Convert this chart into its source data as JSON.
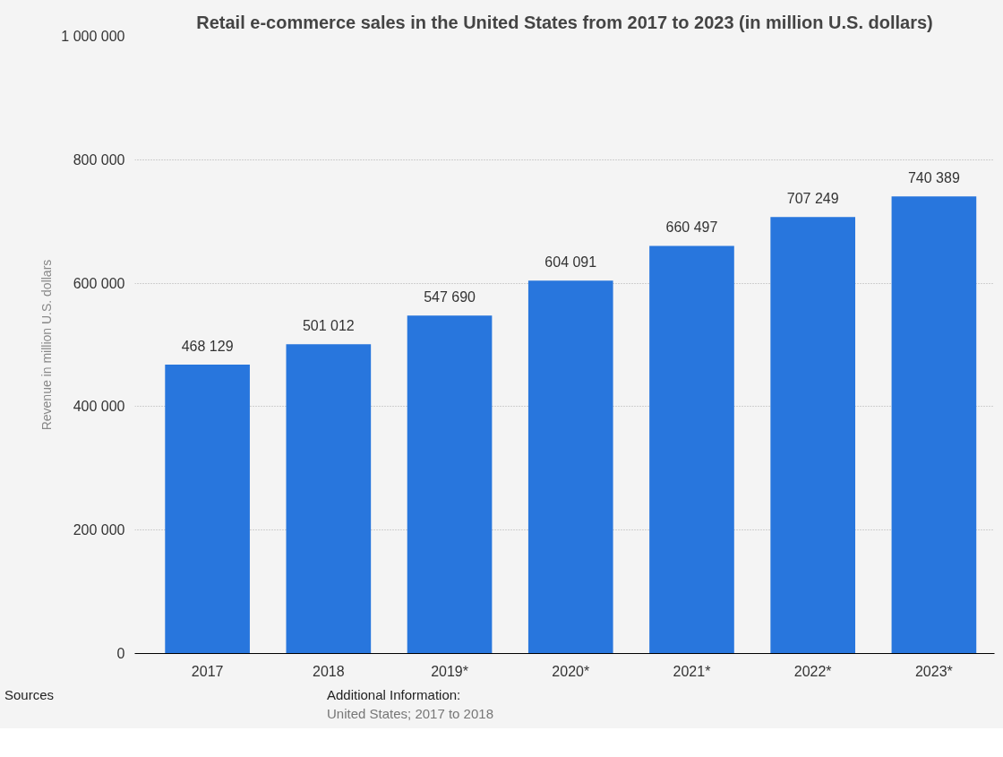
{
  "chart_data": {
    "type": "bar",
    "title": "Retail e-commerce sales in the United States from 2017 to 2023 (in million U.S. dollars)",
    "ylabel": "Revenue in million U.S. dollars",
    "categories": [
      "2017",
      "2018",
      "2019*",
      "2020*",
      "2021*",
      "2022*",
      "2023*"
    ],
    "series": [
      {
        "color": "#2876dd",
        "values": [
          468129,
          501012,
          547690,
          604091,
          660497,
          707249,
          740389
        ]
      }
    ],
    "value_labels": [
      "468 129",
      "501 012",
      "547 690",
      "604 091",
      "660 497",
      "707 249",
      "740 389"
    ],
    "ylim": [
      0,
      1000000
    ],
    "yticks": [
      {
        "value": 0,
        "label": "0"
      },
      {
        "value": 200000,
        "label": "200 000"
      },
      {
        "value": 400000,
        "label": "400 000"
      },
      {
        "value": 600000,
        "label": "600 000"
      },
      {
        "value": 800000,
        "label": "800 000"
      },
      {
        "value": 1000000,
        "label": "1 000 000"
      }
    ],
    "grid": "y",
    "annotations": [
      "Sources",
      "Additional Information:",
      "United States; 2017 to 2018"
    ]
  }
}
